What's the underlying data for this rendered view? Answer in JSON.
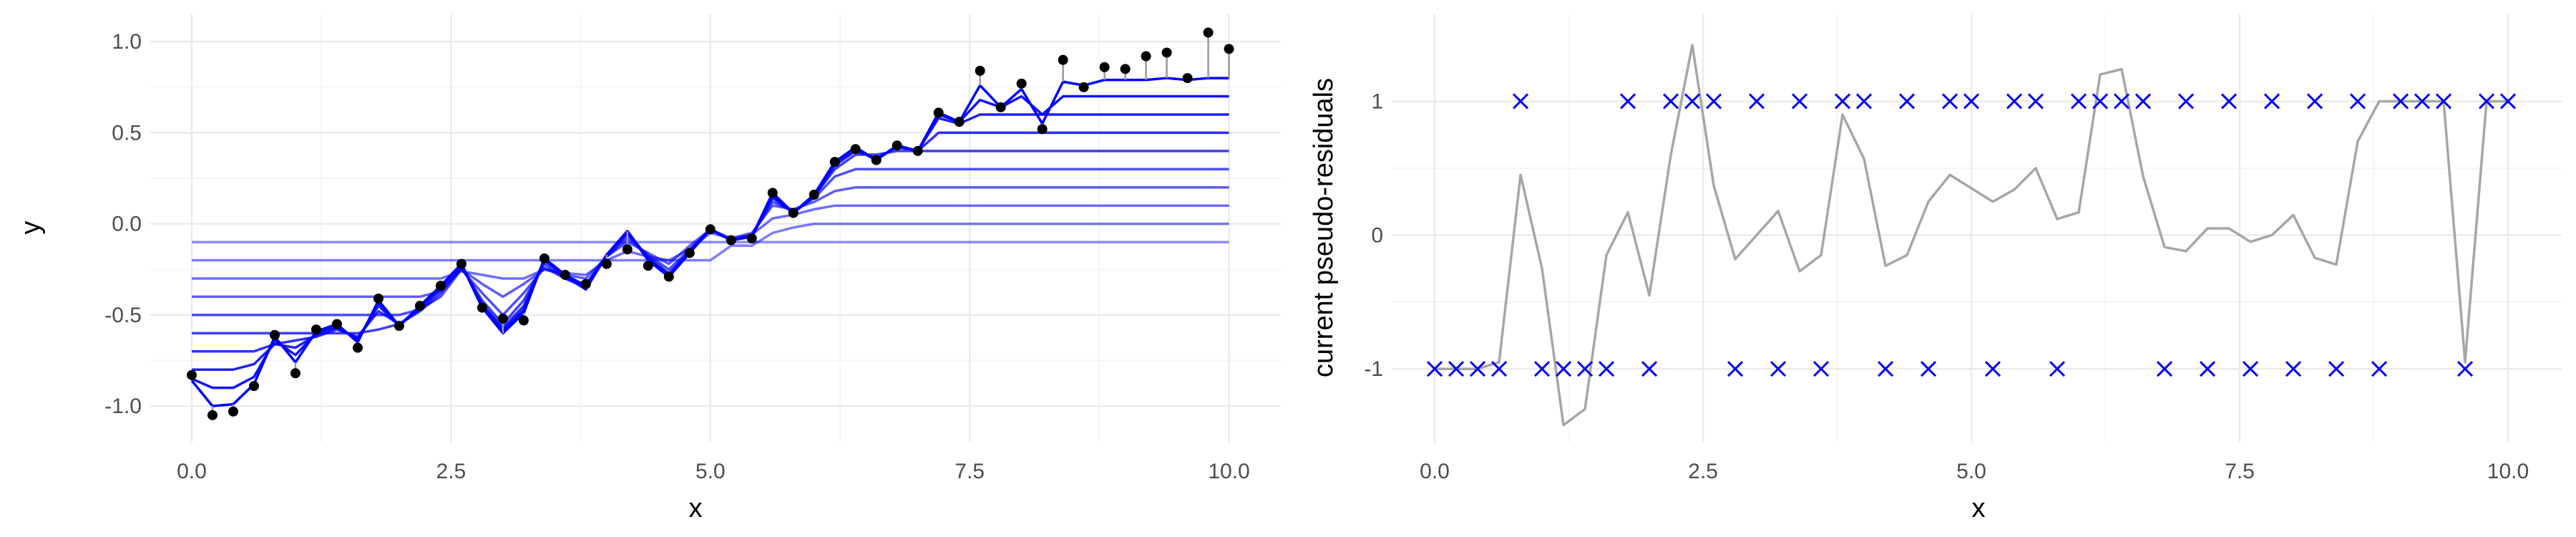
{
  "colors": {
    "background": "#ffffff",
    "grid_major": "#ebebeb",
    "grid_minor": "#f5f5f5",
    "stump_line": "#0000ff",
    "data_point": "#000000",
    "residual_segment": "#999999",
    "residual_line": "#a6a6a6",
    "cross_marker": "#0000ff"
  },
  "chart_data": [
    {
      "id": "left",
      "type": "line",
      "title": "",
      "xlabel": "x",
      "ylabel": "y",
      "xlim": [
        -0.4,
        10.5
      ],
      "ylim": [
        -1.2,
        1.15
      ],
      "x_ticks": [
        0,
        2.5,
        5,
        7.5,
        10
      ],
      "x_tick_labels": [
        "0.0",
        "2.5",
        "5.0",
        "7.5",
        "10.0"
      ],
      "y_ticks": [
        -1,
        -0.5,
        0,
        0.5,
        1
      ],
      "y_tick_labels": [
        "-1.0",
        "-0.5",
        "0.0",
        "0.5",
        "1.0"
      ],
      "grid": true,
      "legend": "none",
      "x": [
        0,
        0.2,
        0.4,
        0.6,
        0.8,
        1.0,
        1.2,
        1.4,
        1.6,
        1.8,
        2.0,
        2.2,
        2.4,
        2.6,
        2.8,
        3.0,
        3.2,
        3.4,
        3.6,
        3.8,
        4.0,
        4.2,
        4.4,
        4.6,
        4.8,
        5.0,
        5.2,
        5.4,
        5.6,
        5.8,
        6.0,
        6.2,
        6.4,
        6.6,
        6.8,
        7.0,
        7.2,
        7.4,
        7.6,
        7.8,
        8.0,
        8.2,
        8.4,
        8.6,
        8.8,
        9.0,
        9.2,
        9.4,
        9.6,
        9.8,
        10.0
      ],
      "points_y": [
        -0.83,
        -1.05,
        -1.03,
        -0.89,
        -0.61,
        -0.82,
        -0.58,
        -0.55,
        -0.68,
        -0.41,
        -0.56,
        -0.45,
        -0.34,
        -0.22,
        -0.46,
        -0.52,
        -0.53,
        -0.19,
        -0.28,
        -0.33,
        -0.22,
        -0.14,
        -0.23,
        -0.29,
        -0.16,
        -0.03,
        -0.09,
        -0.08,
        0.17,
        0.06,
        0.16,
        0.34,
        0.41,
        0.35,
        0.43,
        0.4,
        0.61,
        0.56,
        0.84,
        0.64,
        0.77,
        0.52,
        0.9,
        0.75,
        0.86,
        0.85,
        0.92,
        0.94,
        0.8,
        1.05,
        0.96
      ],
      "series": [
        {
          "step": 1,
          "values": [
            -0.1,
            -0.1,
            -0.1,
            -0.1,
            -0.1,
            -0.1,
            -0.1,
            -0.1,
            -0.1,
            -0.1,
            -0.1,
            -0.1,
            -0.1,
            -0.1,
            -0.1,
            -0.1,
            -0.1,
            -0.1,
            -0.1,
            -0.1,
            -0.1,
            -0.1,
            -0.1,
            -0.1,
            -0.1,
            -0.1,
            -0.1,
            -0.1,
            -0.1,
            -0.1,
            -0.1,
            -0.1,
            -0.1,
            -0.1,
            -0.1,
            -0.1,
            -0.1,
            -0.1,
            -0.1,
            -0.1,
            -0.1,
            -0.1,
            -0.1,
            -0.1,
            -0.1,
            -0.1,
            -0.1,
            -0.1,
            -0.1,
            -0.1,
            -0.1
          ]
        },
        {
          "step": 2,
          "values": [
            -0.2,
            -0.2,
            -0.2,
            -0.2,
            -0.2,
            -0.2,
            -0.2,
            -0.2,
            -0.2,
            -0.2,
            -0.2,
            -0.2,
            -0.2,
            -0.2,
            -0.2,
            -0.2,
            -0.2,
            -0.2,
            -0.2,
            -0.2,
            -0.2,
            -0.2,
            -0.2,
            -0.2,
            -0.2,
            -0.2,
            -0.12,
            -0.12,
            -0.05,
            -0.02,
            0.0,
            0.0,
            0.0,
            0.0,
            0.0,
            0.0,
            0.0,
            0.0,
            0.0,
            0.0,
            0.0,
            0.0,
            0.0,
            0.0,
            0.0,
            0.0,
            0.0,
            0.0,
            0.0,
            0.0,
            0.0
          ]
        },
        {
          "step": 3,
          "values": [
            -0.3,
            -0.3,
            -0.3,
            -0.3,
            -0.3,
            -0.3,
            -0.3,
            -0.3,
            -0.3,
            -0.3,
            -0.3,
            -0.3,
            -0.3,
            -0.26,
            -0.28,
            -0.3,
            -0.3,
            -0.25,
            -0.27,
            -0.28,
            -0.2,
            -0.15,
            -0.18,
            -0.2,
            -0.14,
            -0.05,
            -0.08,
            -0.06,
            0.03,
            0.05,
            0.08,
            0.1,
            0.1,
            0.1,
            0.1,
            0.1,
            0.1,
            0.1,
            0.1,
            0.1,
            0.1,
            0.1,
            0.1,
            0.1,
            0.1,
            0.1,
            0.1,
            0.1,
            0.1,
            0.1,
            0.1
          ]
        },
        {
          "step": 4,
          "values": [
            -0.4,
            -0.4,
            -0.4,
            -0.4,
            -0.4,
            -0.4,
            -0.4,
            -0.4,
            -0.4,
            -0.4,
            -0.4,
            -0.4,
            -0.37,
            -0.25,
            -0.33,
            -0.4,
            -0.33,
            -0.25,
            -0.28,
            -0.3,
            -0.18,
            -0.1,
            -0.16,
            -0.22,
            -0.12,
            -0.03,
            -0.08,
            -0.05,
            0.1,
            0.08,
            0.12,
            0.18,
            0.2,
            0.2,
            0.2,
            0.2,
            0.2,
            0.2,
            0.2,
            0.2,
            0.2,
            0.2,
            0.2,
            0.2,
            0.2,
            0.2,
            0.2,
            0.2,
            0.2,
            0.2,
            0.2
          ]
        },
        {
          "step": 5,
          "values": [
            -0.5,
            -0.5,
            -0.5,
            -0.5,
            -0.5,
            -0.5,
            -0.5,
            -0.5,
            -0.5,
            -0.5,
            -0.5,
            -0.47,
            -0.4,
            -0.25,
            -0.38,
            -0.5,
            -0.38,
            -0.24,
            -0.3,
            -0.33,
            -0.18,
            -0.08,
            -0.17,
            -0.25,
            -0.14,
            -0.03,
            -0.09,
            -0.06,
            0.12,
            0.07,
            0.14,
            0.26,
            0.3,
            0.3,
            0.3,
            0.3,
            0.3,
            0.3,
            0.3,
            0.3,
            0.3,
            0.3,
            0.3,
            0.3,
            0.3,
            0.3,
            0.3,
            0.3,
            0.3,
            0.3,
            0.3
          ]
        },
        {
          "step": 6,
          "values": [
            -0.6,
            -0.6,
            -0.6,
            -0.6,
            -0.6,
            -0.6,
            -0.6,
            -0.6,
            -0.6,
            -0.58,
            -0.55,
            -0.48,
            -0.38,
            -0.24,
            -0.42,
            -0.55,
            -0.42,
            -0.22,
            -0.3,
            -0.35,
            -0.18,
            -0.06,
            -0.18,
            -0.27,
            -0.15,
            -0.03,
            -0.09,
            -0.07,
            0.14,
            0.06,
            0.15,
            0.3,
            0.38,
            0.38,
            0.4,
            0.4,
            0.4,
            0.4,
            0.4,
            0.4,
            0.4,
            0.4,
            0.4,
            0.4,
            0.4,
            0.4,
            0.4,
            0.4,
            0.4,
            0.4,
            0.4
          ]
        },
        {
          "step": 7,
          "values": [
            -0.7,
            -0.7,
            -0.7,
            -0.7,
            -0.66,
            -0.64,
            -0.62,
            -0.58,
            -0.62,
            -0.48,
            -0.55,
            -0.47,
            -0.36,
            -0.23,
            -0.44,
            -0.57,
            -0.45,
            -0.2,
            -0.29,
            -0.36,
            -0.17,
            -0.05,
            -0.19,
            -0.28,
            -0.15,
            -0.03,
            -0.09,
            -0.07,
            0.15,
            0.06,
            0.15,
            0.32,
            0.4,
            0.36,
            0.42,
            0.4,
            0.5,
            0.5,
            0.5,
            0.5,
            0.5,
            0.5,
            0.5,
            0.5,
            0.5,
            0.5,
            0.5,
            0.5,
            0.5,
            0.5,
            0.5
          ]
        },
        {
          "step": 8,
          "values": [
            -0.8,
            -0.8,
            -0.8,
            -0.77,
            -0.66,
            -0.68,
            -0.61,
            -0.57,
            -0.63,
            -0.45,
            -0.56,
            -0.46,
            -0.35,
            -0.22,
            -0.45,
            -0.58,
            -0.47,
            -0.2,
            -0.28,
            -0.36,
            -0.17,
            -0.04,
            -0.19,
            -0.29,
            -0.16,
            -0.03,
            -0.09,
            -0.07,
            0.16,
            0.06,
            0.16,
            0.33,
            0.41,
            0.35,
            0.43,
            0.4,
            0.58,
            0.55,
            0.6,
            0.6,
            0.6,
            0.6,
            0.6,
            0.6,
            0.6,
            0.6,
            0.6,
            0.6,
            0.6,
            0.6,
            0.6
          ]
        },
        {
          "step": 9,
          "values": [
            -0.85,
            -0.9,
            -0.9,
            -0.84,
            -0.64,
            -0.72,
            -0.6,
            -0.56,
            -0.64,
            -0.43,
            -0.56,
            -0.45,
            -0.34,
            -0.22,
            -0.46,
            -0.59,
            -0.48,
            -0.19,
            -0.28,
            -0.35,
            -0.17,
            -0.04,
            -0.2,
            -0.29,
            -0.16,
            -0.03,
            -0.09,
            -0.07,
            0.16,
            0.06,
            0.16,
            0.34,
            0.42,
            0.35,
            0.43,
            0.4,
            0.6,
            0.56,
            0.68,
            0.64,
            0.7,
            0.6,
            0.7,
            0.7,
            0.7,
            0.7,
            0.7,
            0.7,
            0.7,
            0.7,
            0.7
          ]
        },
        {
          "step": 10,
          "values": [
            -0.86,
            -1.0,
            -0.99,
            -0.88,
            -0.62,
            -0.76,
            -0.59,
            -0.55,
            -0.65,
            -0.42,
            -0.56,
            -0.45,
            -0.34,
            -0.22,
            -0.46,
            -0.6,
            -0.49,
            -0.19,
            -0.28,
            -0.34,
            -0.17,
            -0.04,
            -0.2,
            -0.29,
            -0.16,
            -0.03,
            -0.09,
            -0.07,
            0.17,
            0.06,
            0.16,
            0.34,
            0.42,
            0.35,
            0.43,
            0.4,
            0.61,
            0.56,
            0.76,
            0.64,
            0.74,
            0.55,
            0.78,
            0.76,
            0.79,
            0.79,
            0.79,
            0.8,
            0.79,
            0.8,
            0.8
          ]
        }
      ]
    },
    {
      "id": "right",
      "type": "line",
      "title": "",
      "xlabel": "x",
      "ylabel": "current pseudo-residuals",
      "xlim": [
        -0.4,
        10.5
      ],
      "ylim": [
        -1.55,
        1.65
      ],
      "x_ticks": [
        0,
        2.5,
        5,
        7.5,
        10
      ],
      "x_tick_labels": [
        "0.0",
        "2.5",
        "5.0",
        "7.5",
        "10.0"
      ],
      "y_ticks": [
        -1,
        0,
        1
      ],
      "y_tick_labels": [
        "-1",
        "0",
        "1"
      ],
      "grid": true,
      "legend": "none",
      "x": [
        0,
        0.2,
        0.4,
        0.6,
        0.8,
        1.0,
        1.2,
        1.4,
        1.6,
        1.8,
        2.0,
        2.2,
        2.4,
        2.6,
        2.8,
        3.0,
        3.2,
        3.4,
        3.6,
        3.8,
        4.0,
        4.2,
        4.4,
        4.6,
        4.8,
        5.0,
        5.2,
        5.4,
        5.6,
        5.8,
        6.0,
        6.2,
        6.4,
        6.6,
        6.8,
        7.0,
        7.2,
        7.4,
        7.6,
        7.8,
        8.0,
        8.2,
        8.4,
        8.6,
        8.8,
        9.0,
        9.2,
        9.4,
        9.6,
        9.8,
        10.0
      ],
      "residuals": [
        -1.0,
        -1.0,
        -1.0,
        -0.95,
        0.45,
        -0.25,
        -1.42,
        -1.3,
        -0.15,
        0.17,
        -0.45,
        0.6,
        1.42,
        0.37,
        -0.18,
        0.0,
        0.18,
        -0.27,
        -0.15,
        0.9,
        0.57,
        -0.23,
        -0.15,
        0.25,
        0.45,
        0.35,
        0.25,
        0.34,
        0.5,
        0.12,
        0.17,
        1.2,
        1.24,
        0.44,
        -0.09,
        -0.12,
        0.05,
        0.05,
        -0.05,
        0.0,
        0.15,
        -0.17,
        -0.22,
        0.7,
        1.0,
        1.0,
        1.0,
        1.0,
        -0.95,
        1.0,
        1.0
      ],
      "signs": [
        -1,
        -1,
        -1,
        -1,
        1,
        -1,
        -1,
        -1,
        -1,
        1,
        -1,
        1,
        1,
        1,
        -1,
        1,
        -1,
        1,
        -1,
        1,
        1,
        -1,
        1,
        -1,
        1,
        1,
        -1,
        1,
        1,
        -1,
        1,
        1,
        1,
        1,
        -1,
        1,
        -1,
        1,
        -1,
        1,
        -1,
        1,
        -1,
        1,
        -1,
        1,
        1,
        1,
        -1,
        1,
        1
      ]
    }
  ]
}
